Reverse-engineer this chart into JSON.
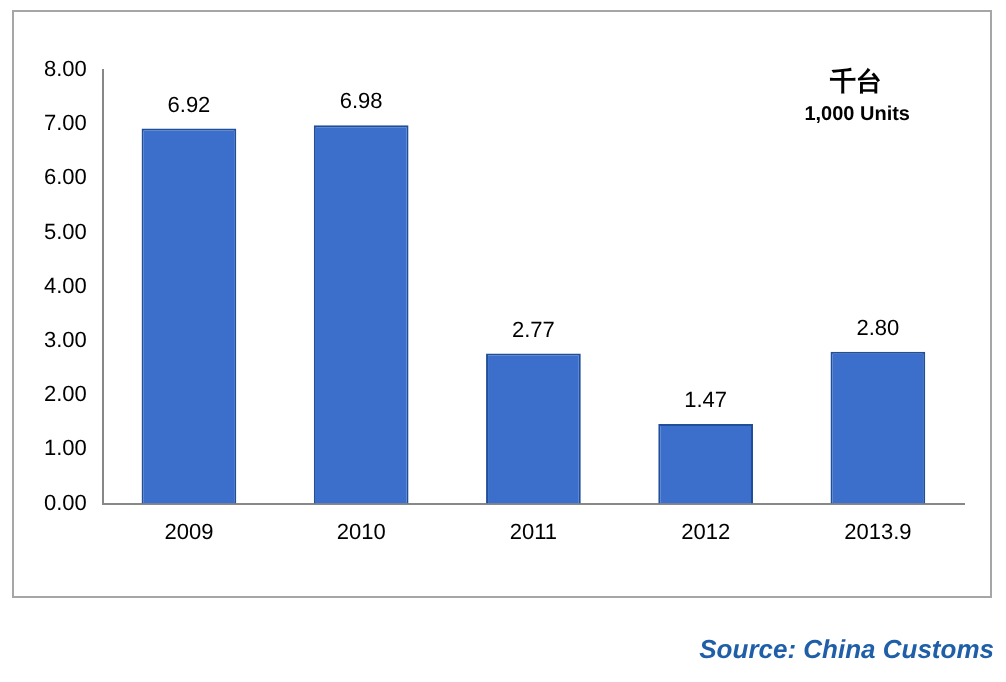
{
  "chart_data": {
    "type": "bar",
    "categories": [
      "2009",
      "2010",
      "2011",
      "2012",
      "2013.9"
    ],
    "values": [
      6.92,
      6.98,
      2.77,
      1.47,
      2.8
    ],
    "value_labels": [
      "6.92",
      "6.98",
      "2.77",
      "1.47",
      "2.80"
    ],
    "color": "#3b6fcb",
    "ylim": [
      0,
      8
    ],
    "yticks": [
      {
        "value": 0,
        "label": "0.00"
      },
      {
        "value": 1,
        "label": "1.00"
      },
      {
        "value": 2,
        "label": "2.00"
      },
      {
        "value": 3,
        "label": "3.00"
      },
      {
        "value": 4,
        "label": "4.00"
      },
      {
        "value": 5,
        "label": "5.00"
      },
      {
        "value": 6,
        "label": "6.00"
      },
      {
        "value": 7,
        "label": "7.00"
      },
      {
        "value": 8,
        "label": "8.00"
      }
    ],
    "grid": false,
    "legend": false,
    "annotations": [
      "千台",
      "1,000 Units",
      "Source: China Customs"
    ]
  }
}
